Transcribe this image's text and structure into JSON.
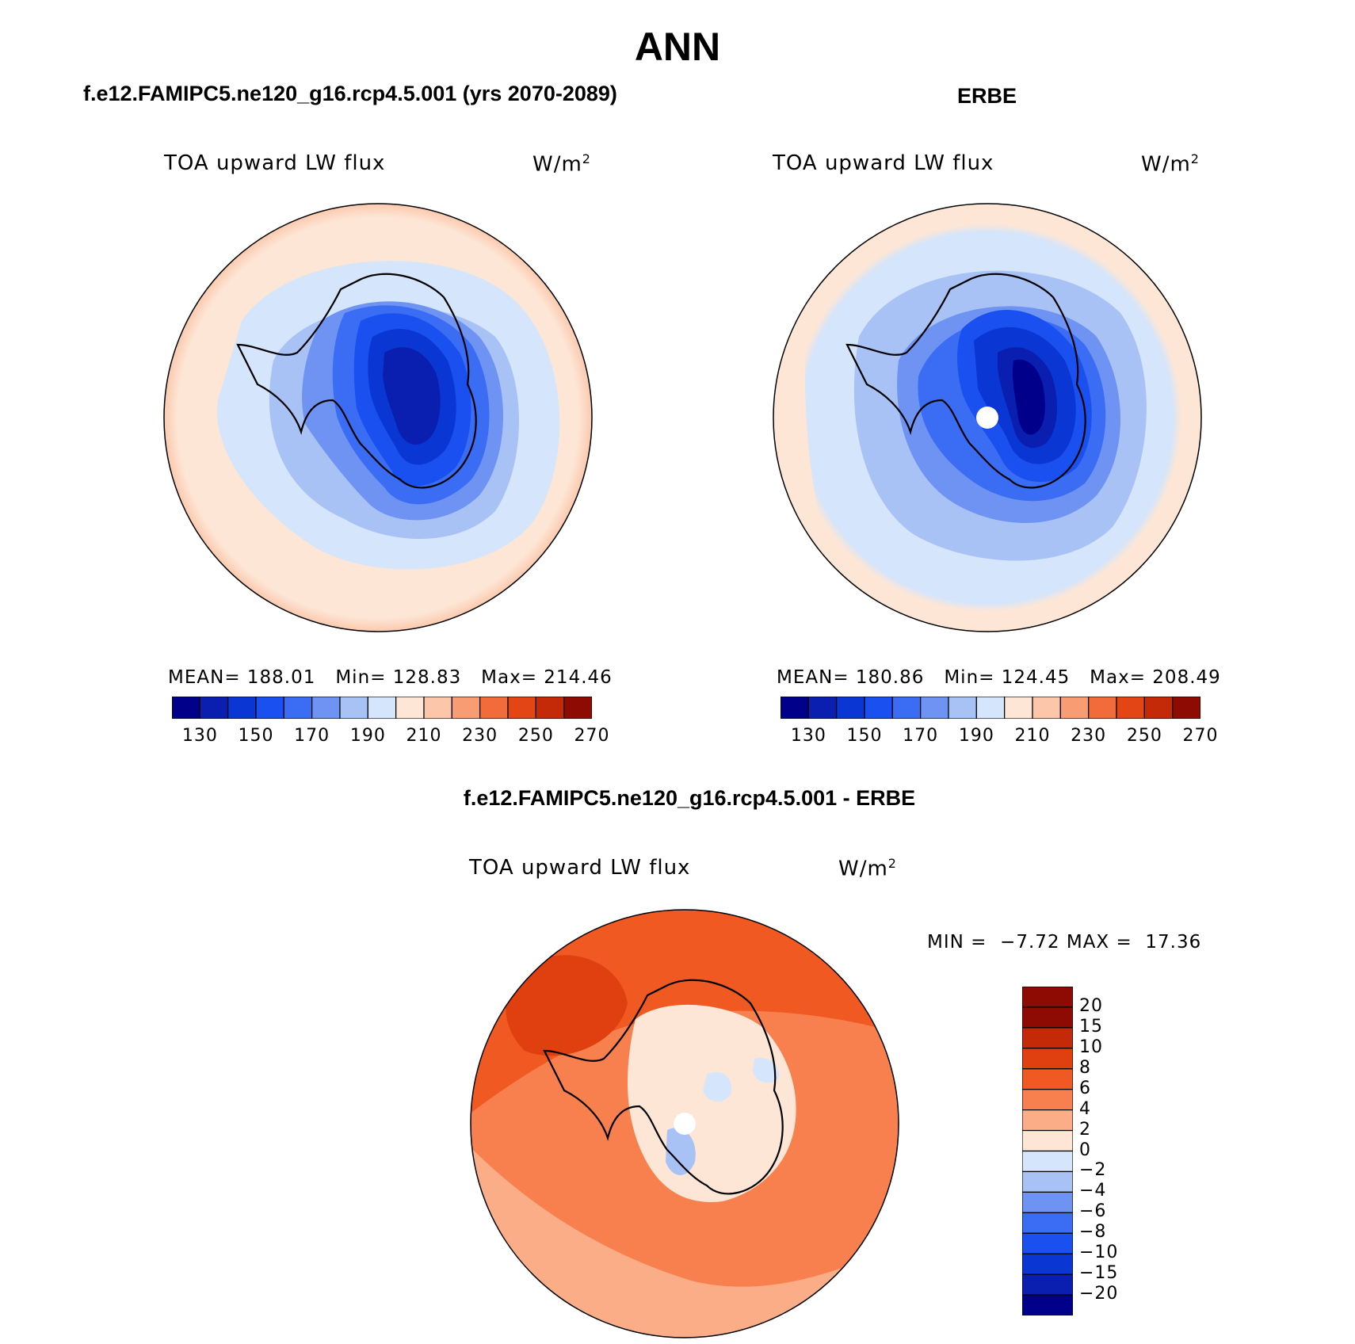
{
  "title": "ANN",
  "panels": [
    {
      "id": "model",
      "title": "f.e12.FAMIPC5.ne120_g16.rcp4.5.001 (yrs 2070-2089)",
      "variable": "TOA upward LW flux",
      "units": "W/m",
      "units_sup": "2",
      "stats": {
        "mean_label": "MEAN=",
        "mean": "188.01",
        "min_label": "Min=",
        "min": "128.83",
        "max_label": "Max=",
        "max": "214.46"
      }
    },
    {
      "id": "obs",
      "title": "ERBE",
      "variable": "TOA upward LW flux",
      "units": "W/m",
      "units_sup": "2",
      "stats": {
        "mean_label": "MEAN=",
        "mean": "180.86",
        "min_label": "Min=",
        "min": "124.45",
        "max_label": "Max=",
        "max": "208.49"
      }
    },
    {
      "id": "diff",
      "title": "f.e12.FAMIPC5.ne120_g16.rcp4.5.001 - ERBE",
      "variable": "TOA upward LW flux",
      "units": "W/m",
      "units_sup": "2",
      "stats": {
        "min_label": "MIN =",
        "min": "−7.72",
        "max_label": "MAX =",
        "max": "17.36"
      }
    }
  ],
  "abs_colorbar": {
    "colors": [
      "#00008b",
      "#0a1fb0",
      "#0a37d3",
      "#1a50f0",
      "#3b6df4",
      "#6e93f2",
      "#a9c2f6",
      "#d5e5fb",
      "#fde6d6",
      "#fcc6aa",
      "#f89c74",
      "#f26b3a",
      "#e44515",
      "#c42a08",
      "#8e0b04"
    ],
    "tick_labels": [
      "130",
      "150",
      "170",
      "190",
      "210",
      "230",
      "250",
      "270"
    ]
  },
  "diff_colorbar": {
    "colors": [
      "#8e0b04",
      "#c42a08",
      "#e04010",
      "#f05a22",
      "#f8804e",
      "#fbad88",
      "#fde6d6",
      "#d5e5fb",
      "#a9c2f6",
      "#6e93f2",
      "#3b6df4",
      "#1a50f0",
      "#0a37d3",
      "#0a1fb0",
      "#00008b"
    ],
    "tick_labels": [
      "20",
      "15",
      "10",
      "8",
      "6",
      "4",
      "2",
      "0",
      "−2",
      "−4",
      "−6",
      "−8",
      "−10",
      "−15",
      "−20"
    ]
  },
  "chart_data": {
    "type": "heatmap",
    "projection": "south polar stereographic",
    "panels": [
      {
        "title": "f.e12.FAMIPC5.ne120_g16.rcp4.5.001 (yrs 2070-2089)",
        "variable": "TOA upward LW flux",
        "units": "W/m2",
        "mean": 188.01,
        "min": 128.83,
        "max": 214.46,
        "contour_levels": [
          130,
          140,
          150,
          160,
          170,
          180,
          190,
          200,
          210,
          220,
          230,
          240,
          250,
          260,
          270
        ]
      },
      {
        "title": "ERBE",
        "variable": "TOA upward LW flux",
        "units": "W/m2",
        "mean": 180.86,
        "min": 124.45,
        "max": 208.49,
        "contour_levels": [
          130,
          140,
          150,
          160,
          170,
          180,
          190,
          200,
          210,
          220,
          230,
          240,
          250,
          260,
          270
        ]
      },
      {
        "title": "f.e12.FAMIPC5.ne120_g16.rcp4.5.001 - ERBE",
        "variable": "TOA upward LW flux",
        "units": "W/m2",
        "min": -7.72,
        "max": 17.36,
        "contour_levels": [
          -20,
          -15,
          -10,
          -8,
          -6,
          -4,
          -2,
          0,
          2,
          4,
          6,
          8,
          10,
          15,
          20
        ]
      }
    ]
  }
}
